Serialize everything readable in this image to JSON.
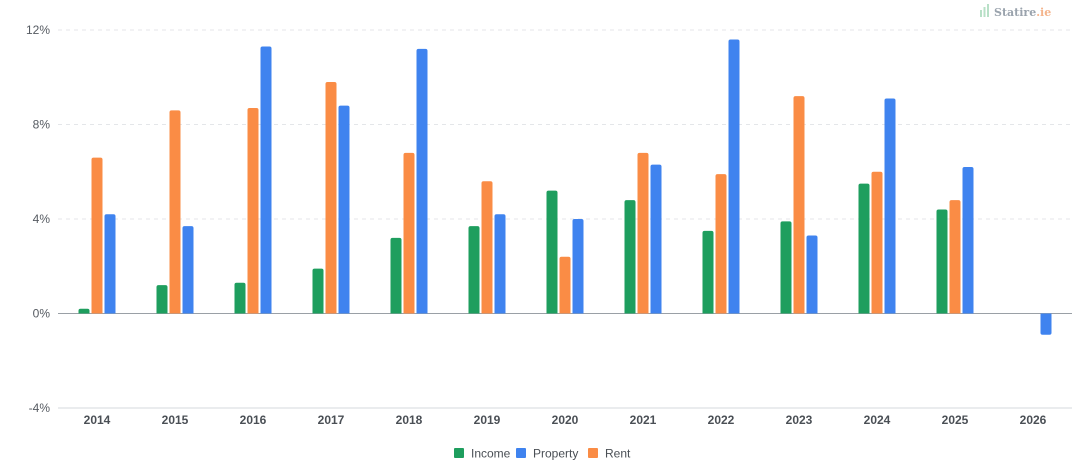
{
  "brand": {
    "name_main": "Statire",
    "name_tld": ".ie",
    "icon": "bar-chart-icon"
  },
  "chart_data": {
    "type": "bar",
    "title": "",
    "xlabel": "",
    "ylabel": "",
    "categories": [
      "2014",
      "2015",
      "2016",
      "2017",
      "2018",
      "2019",
      "2020",
      "2021",
      "2022",
      "2023",
      "2024",
      "2025",
      "2026"
    ],
    "series": [
      {
        "name": "Income",
        "color": "#1e9e5e",
        "values": [
          0.2,
          1.2,
          1.3,
          1.9,
          3.2,
          3.7,
          5.2,
          4.8,
          3.5,
          3.9,
          5.5,
          4.4,
          null
        ]
      },
      {
        "name": "Rent",
        "color": "#fa8c45",
        "values": [
          6.6,
          8.6,
          8.7,
          9.8,
          6.8,
          5.6,
          2.4,
          6.8,
          5.9,
          9.2,
          6.0,
          4.8,
          null
        ]
      },
      {
        "name": "Property",
        "color": "#3f83ef",
        "values": [
          4.2,
          3.7,
          11.3,
          8.8,
          11.2,
          4.2,
          4.0,
          6.3,
          11.6,
          3.3,
          9.1,
          6.2,
          -0.9
        ]
      }
    ],
    "ylim": [
      -4,
      12
    ],
    "yticks": [
      -4,
      0,
      4,
      8,
      12
    ],
    "ytick_format": "%",
    "legend": {
      "position": "bottom",
      "order": [
        "Income",
        "Property",
        "Rent"
      ]
    },
    "grid": true
  }
}
